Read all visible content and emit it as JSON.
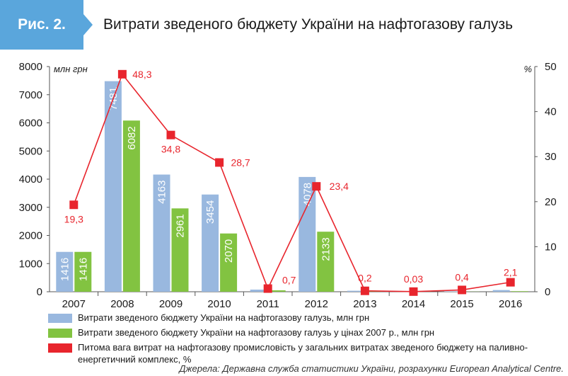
{
  "header": {
    "fig_label": "Рис. 2.",
    "title": "Витрати зведеного бюджету України на нафтогазову галузь"
  },
  "colors": {
    "header_bg": "#5aa6dc",
    "series_nominal": "#99b8df",
    "series_real": "#82c341",
    "series_share": "#e8252d"
  },
  "chart_data": {
    "type": "bar",
    "categories": [
      "2007",
      "2008",
      "2009",
      "2010",
      "2011",
      "2012",
      "2013",
      "2014",
      "2015",
      "2016"
    ],
    "left_axis": {
      "unit": "млн грн",
      "ylim": [
        0,
        8000
      ],
      "ticks": [
        "0",
        "1000",
        "2000",
        "3000",
        "4000",
        "5000",
        "6000",
        "7000",
        "8000"
      ]
    },
    "right_axis": {
      "unit": "%",
      "ylim": [
        0,
        50
      ],
      "ticks": [
        "0",
        "10",
        "20",
        "30",
        "40",
        "50"
      ]
    },
    "series": [
      {
        "name": "Витрати зведеного бюджету України на нафтогазову галузь, млн грн",
        "type": "bar",
        "axis": "left",
        "values": [
          1416,
          7481,
          4163,
          3454,
          75,
          4078,
          35,
          20,
          15,
          60
        ],
        "labels": [
          "1416",
          "7481",
          "4163",
          "3454",
          "",
          "4078",
          "",
          "",
          "",
          ""
        ]
      },
      {
        "name": "Витрати зведеного бюджету України на нафтогазову галузь у цінах 2007 р., млн грн",
        "type": "bar",
        "axis": "left",
        "values": [
          1416,
          6082,
          2961,
          2070,
          50,
          2133,
          15,
          10,
          5,
          20
        ],
        "labels": [
          "1416",
          "6082",
          "2961",
          "2070",
          "",
          "2133",
          "",
          "",
          "",
          ""
        ]
      },
      {
        "name": "Питома вага витрат на нафтогазову промисловість у загальних витратах зведеного бюджету на паливно-енергетичний комплекс, %",
        "type": "line",
        "axis": "right",
        "values": [
          19.3,
          48.3,
          34.8,
          28.7,
          0.7,
          23.4,
          0.2,
          0.03,
          0.4,
          2.1
        ],
        "labels": [
          "19,3",
          "48,3",
          "34,8",
          "28,7",
          "0,7",
          "23,4",
          "0,2",
          "0,03",
          "0,4",
          "2,1"
        ]
      }
    ],
    "legend": [
      "Витрати зведеного бюджету України на нафтогазову галузь, млн грн",
      "Витрати зведеного бюджету України на нафтогазову галузь у цінах 2007 р., млн грн",
      "Питома вага витрат на нафтогазову промисловість у загальних витратах зведеного бюджету на паливно-енергетичний комплекс, %"
    ]
  },
  "source": "Джерела: Державна служба статистики України, розрахунки European Analytical Centre."
}
